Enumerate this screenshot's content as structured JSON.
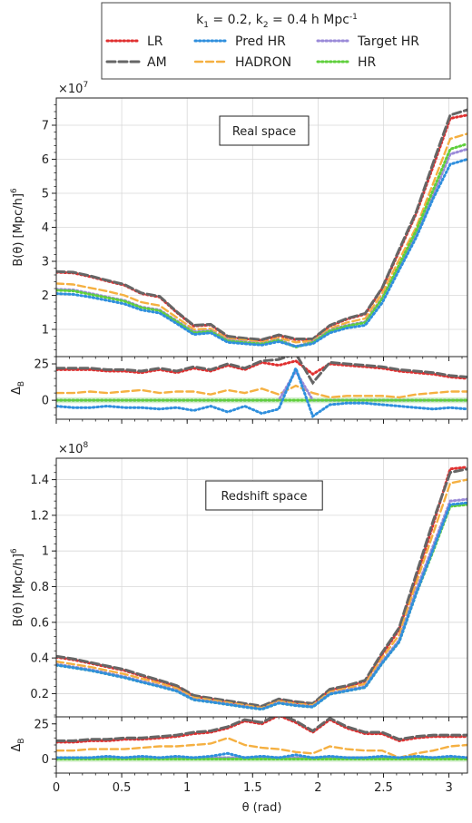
{
  "legend": {
    "title": "k$1 = 0.2, k$2 = 0.4 h Mpc$-1",
    "entries": [
      {
        "key": "LR",
        "label": "LR"
      },
      {
        "key": "PredHR",
        "label": "Pred HR"
      },
      {
        "key": "TargetHR",
        "label": "Target HR"
      },
      {
        "key": "AM",
        "label": "AM"
      },
      {
        "key": "HADRON",
        "label": "HADRON"
      },
      {
        "key": "HR",
        "label": "HR"
      }
    ]
  },
  "styles": {
    "LR": {
      "color": "#e03030",
      "dash": "1.5 3",
      "width": 3
    },
    "AM": {
      "color": "#666666",
      "dash": "9 4",
      "width": 3
    },
    "PredHR": {
      "color": "#2f8fdd",
      "dash": "1.5 3",
      "width": 3
    },
    "HADRON": {
      "color": "#f5b041",
      "dash": "8 4",
      "width": 2.4
    },
    "TargetHR": {
      "color": "#9a8ad8",
      "dash": "1.5 3",
      "width": 3
    },
    "HR": {
      "color": "#5fcf3c",
      "dash": "1.5 3",
      "width": 3
    }
  },
  "xaxis": {
    "label": "θ (rad)",
    "range": [
      0,
      3.1416
    ],
    "ticks": [
      0,
      0.5,
      1,
      1.5,
      2,
      2.5,
      3
    ],
    "tick_labels": [
      "0",
      "0.5",
      "1",
      "1.5",
      "2",
      "2.5",
      "3"
    ]
  },
  "chart_data": [
    {
      "type": "line",
      "title": "Real space",
      "ylabel": "B(θ) [Mpc/h]6",
      "multiplier": "×107",
      "ylim": [
        0.2,
        7.8
      ],
      "yticks": [
        1,
        2,
        3,
        4,
        5,
        6,
        7
      ],
      "ytick_labels": [
        "1",
        "2",
        "3",
        "4",
        "5",
        "6",
        "7"
      ],
      "grid": true,
      "x": [
        0,
        0.13,
        0.26,
        0.39,
        0.52,
        0.65,
        0.79,
        0.92,
        1.05,
        1.18,
        1.31,
        1.44,
        1.57,
        1.7,
        1.83,
        1.96,
        2.09,
        2.22,
        2.36,
        2.49,
        2.62,
        2.75,
        2.88,
        3.01,
        3.14
      ],
      "series": [
        {
          "key": "LR",
          "values": [
            2.68,
            2.66,
            2.55,
            2.42,
            2.3,
            2.05,
            1.95,
            1.5,
            1.1,
            1.13,
            0.78,
            0.72,
            0.68,
            0.82,
            0.7,
            0.7,
            1.1,
            1.3,
            1.45,
            2.2,
            3.3,
            4.4,
            5.8,
            7.2,
            7.3
          ]
        },
        {
          "key": "AM",
          "values": [
            2.7,
            2.68,
            2.57,
            2.44,
            2.32,
            2.07,
            1.97,
            1.52,
            1.12,
            1.15,
            0.8,
            0.74,
            0.7,
            0.84,
            0.72,
            0.72,
            1.12,
            1.32,
            1.47,
            2.22,
            3.35,
            4.45,
            5.9,
            7.3,
            7.45
          ]
        },
        {
          "key": "HADRON",
          "values": [
            2.35,
            2.32,
            2.22,
            2.12,
            2.0,
            1.8,
            1.7,
            1.35,
            1.0,
            1.02,
            0.72,
            0.68,
            0.62,
            0.75,
            0.62,
            0.66,
            1.02,
            1.2,
            1.32,
            2.05,
            3.05,
            4.0,
            5.3,
            6.6,
            6.75
          ]
        },
        {
          "key": "TargetHR",
          "values": [
            2.18,
            2.16,
            2.06,
            1.95,
            1.85,
            1.66,
            1.57,
            1.25,
            0.93,
            0.96,
            0.68,
            0.63,
            0.58,
            0.7,
            0.5,
            0.63,
            0.97,
            1.12,
            1.22,
            1.92,
            2.85,
            3.8,
            4.95,
            6.15,
            6.3
          ]
        },
        {
          "key": "HR",
          "values": [
            2.15,
            2.13,
            2.03,
            1.93,
            1.83,
            1.64,
            1.55,
            1.23,
            0.9,
            0.94,
            0.66,
            0.61,
            0.57,
            0.68,
            0.48,
            0.61,
            0.95,
            1.1,
            1.2,
            1.9,
            2.9,
            3.9,
            5.1,
            6.3,
            6.45
          ]
        },
        {
          "key": "PredHR",
          "values": [
            2.05,
            2.03,
            1.95,
            1.85,
            1.75,
            1.57,
            1.48,
            1.17,
            0.85,
            0.9,
            0.62,
            0.58,
            0.54,
            0.64,
            0.5,
            0.58,
            0.9,
            1.04,
            1.12,
            1.78,
            2.75,
            3.7,
            4.85,
            5.85,
            6.0
          ]
        }
      ]
    },
    {
      "type": "line",
      "title": "",
      "ylabel": "ΔB",
      "ylim": [
        -13,
        30
      ],
      "yticks": [
        0,
        25
      ],
      "ytick_labels": [
        "0",
        "25"
      ],
      "band": [
        -2,
        2
      ],
      "x": [
        0,
        0.13,
        0.26,
        0.39,
        0.52,
        0.65,
        0.79,
        0.92,
        1.05,
        1.18,
        1.31,
        1.44,
        1.57,
        1.7,
        1.83,
        1.96,
        2.09,
        2.22,
        2.36,
        2.49,
        2.62,
        2.75,
        2.88,
        3.01,
        3.14
      ],
      "series": [
        {
          "key": "LR",
          "values": [
            21,
            21,
            21,
            20,
            20,
            19,
            21,
            19,
            22,
            20,
            24,
            21,
            26,
            24,
            27,
            18,
            25,
            24,
            23,
            22,
            20,
            19,
            18,
            16,
            15
          ]
        },
        {
          "key": "AM",
          "values": [
            22,
            22,
            22,
            21,
            21,
            20,
            22,
            20,
            23,
            21,
            25,
            22,
            27,
            28,
            32,
            12,
            26,
            25,
            24,
            23,
            21,
            20,
            19,
            17,
            16
          ]
        },
        {
          "key": "HADRON",
          "values": [
            5,
            5,
            6,
            5,
            6,
            7,
            5,
            6,
            6,
            4,
            7,
            5,
            8,
            4,
            10,
            5,
            2,
            3,
            3,
            3,
            2,
            4,
            5,
            6,
            6
          ]
        },
        {
          "key": "TargetHR",
          "values": [
            0,
            0,
            0,
            0,
            0,
            0,
            0,
            0,
            0,
            0,
            0,
            0,
            0,
            0,
            20,
            0,
            0,
            0,
            0,
            0,
            0,
            0,
            0,
            0,
            0
          ]
        },
        {
          "key": "HR",
          "values": [
            0,
            0,
            0,
            0,
            0,
            0,
            0,
            0,
            0,
            0,
            0,
            0,
            0,
            0,
            0,
            0,
            0,
            0,
            0,
            0,
            0,
            0,
            0,
            0,
            0
          ]
        },
        {
          "key": "PredHR",
          "values": [
            -4,
            -5,
            -5,
            -4,
            -5,
            -5,
            -6,
            -5,
            -7,
            -4,
            -8,
            -4,
            -9,
            -6,
            22,
            -11,
            -3,
            -2,
            -2,
            -3,
            -4,
            -5,
            -6,
            -5,
            -6
          ]
        }
      ]
    },
    {
      "type": "line",
      "title": "Redshift space",
      "ylabel": "B(θ) [Mpc/h]6",
      "multiplier": "×108",
      "ylim": [
        0.07,
        1.52
      ],
      "yticks": [
        0.2,
        0.4,
        0.6,
        0.8,
        1.0,
        1.2,
        1.4
      ],
      "ytick_labels": [
        "0.2",
        "0.4",
        "0.6",
        "0.8",
        "1",
        "1.2",
        "1.4"
      ],
      "grid": true,
      "x": [
        0,
        0.13,
        0.26,
        0.39,
        0.52,
        0.65,
        0.79,
        0.92,
        1.05,
        1.18,
        1.31,
        1.44,
        1.57,
        1.7,
        1.83,
        1.96,
        2.09,
        2.22,
        2.36,
        2.49,
        2.62,
        2.75,
        2.88,
        3.01,
        3.14
      ],
      "series": [
        {
          "key": "LR",
          "values": [
            0.405,
            0.39,
            0.37,
            0.35,
            0.33,
            0.3,
            0.27,
            0.24,
            0.185,
            0.17,
            0.155,
            0.14,
            0.125,
            0.165,
            0.15,
            0.14,
            0.22,
            0.24,
            0.27,
            0.42,
            0.56,
            0.85,
            1.15,
            1.46,
            1.47
          ]
        },
        {
          "key": "AM",
          "values": [
            0.41,
            0.395,
            0.375,
            0.355,
            0.335,
            0.305,
            0.275,
            0.245,
            0.19,
            0.175,
            0.16,
            0.145,
            0.13,
            0.17,
            0.155,
            0.145,
            0.225,
            0.245,
            0.275,
            0.43,
            0.57,
            0.87,
            1.17,
            1.44,
            1.46
          ]
        },
        {
          "key": "HADRON",
          "values": [
            0.38,
            0.365,
            0.35,
            0.33,
            0.31,
            0.285,
            0.258,
            0.23,
            0.178,
            0.165,
            0.15,
            0.135,
            0.12,
            0.158,
            0.143,
            0.135,
            0.21,
            0.23,
            0.255,
            0.4,
            0.53,
            0.82,
            1.1,
            1.38,
            1.4
          ]
        },
        {
          "key": "TargetHR",
          "values": [
            0.365,
            0.35,
            0.335,
            0.315,
            0.295,
            0.27,
            0.245,
            0.218,
            0.168,
            0.156,
            0.142,
            0.128,
            0.114,
            0.15,
            0.136,
            0.128,
            0.2,
            0.22,
            0.24,
            0.38,
            0.5,
            0.78,
            1.03,
            1.28,
            1.29
          ]
        },
        {
          "key": "HR",
          "values": [
            0.36,
            0.345,
            0.33,
            0.31,
            0.29,
            0.265,
            0.24,
            0.214,
            0.165,
            0.153,
            0.139,
            0.125,
            0.112,
            0.147,
            0.133,
            0.125,
            0.197,
            0.215,
            0.235,
            0.37,
            0.49,
            0.76,
            1.0,
            1.25,
            1.26
          ]
        },
        {
          "key": "PredHR",
          "values": [
            0.36,
            0.345,
            0.33,
            0.31,
            0.29,
            0.265,
            0.24,
            0.214,
            0.165,
            0.153,
            0.139,
            0.125,
            0.112,
            0.147,
            0.133,
            0.125,
            0.197,
            0.215,
            0.235,
            0.37,
            0.49,
            0.76,
            1.01,
            1.26,
            1.27
          ]
        }
      ]
    },
    {
      "type": "line",
      "title": "",
      "ylabel": "ΔB",
      "ylim": [
        -10,
        30
      ],
      "yticks": [
        0,
        25
      ],
      "ytick_labels": [
        "0",
        "25"
      ],
      "band": [
        -2,
        2
      ],
      "x": [
        0,
        0.13,
        0.26,
        0.39,
        0.52,
        0.65,
        0.79,
        0.92,
        1.05,
        1.18,
        1.31,
        1.44,
        1.57,
        1.7,
        1.83,
        1.96,
        2.09,
        2.22,
        2.36,
        2.49,
        2.62,
        2.75,
        2.88,
        3.01,
        3.14
      ],
      "series": [
        {
          "key": "LR",
          "values": [
            12,
            12,
            13,
            13,
            14,
            14,
            15,
            16,
            18,
            19,
            22,
            27,
            25,
            31,
            26,
            19,
            28,
            22,
            18,
            18,
            13,
            15,
            16,
            16,
            16
          ]
        },
        {
          "key": "AM",
          "values": [
            13,
            13,
            14,
            14,
            15,
            15,
            16,
            17,
            19,
            20,
            23,
            28,
            26,
            32,
            27,
            20,
            29,
            23,
            19,
            19,
            14,
            16,
            17,
            17,
            17
          ]
        },
        {
          "key": "HADRON",
          "values": [
            6,
            6,
            7,
            7,
            7,
            8,
            9,
            9,
            10,
            11,
            15,
            10,
            8,
            7,
            5,
            4,
            9,
            7,
            6,
            6,
            1,
            4,
            6,
            9,
            10
          ]
        },
        {
          "key": "TargetHR",
          "values": [
            1,
            1,
            1,
            1,
            1,
            1,
            1,
            1,
            1,
            1,
            1,
            1,
            1,
            1,
            1,
            1,
            1,
            1,
            1,
            1,
            1,
            1,
            1,
            1,
            1
          ]
        },
        {
          "key": "HR",
          "values": [
            0,
            0,
            0,
            0,
            0,
            0,
            0,
            0,
            0,
            0,
            0,
            0,
            0,
            0,
            0,
            0,
            0,
            0,
            0,
            0,
            0,
            0,
            0,
            0,
            0
          ]
        },
        {
          "key": "PredHR",
          "values": [
            1,
            1,
            1,
            2,
            1,
            2,
            1,
            2,
            1,
            2,
            4,
            1,
            2,
            1,
            3,
            1,
            2,
            1,
            1,
            2,
            1,
            2,
            1,
            2,
            1
          ]
        }
      ]
    }
  ]
}
